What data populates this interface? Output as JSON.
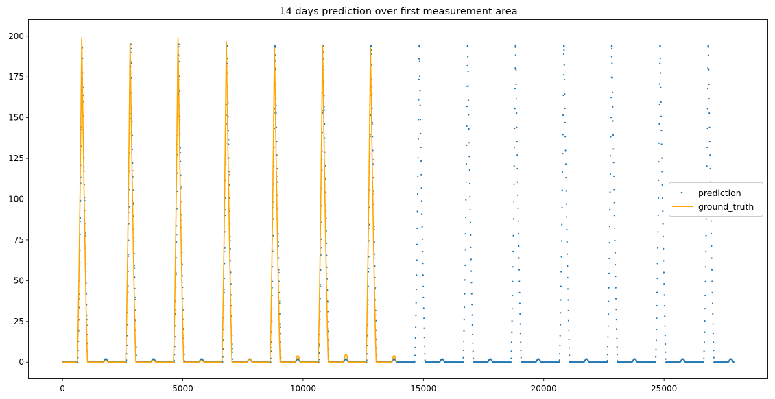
{
  "chart_data": {
    "type": "scatter",
    "title": "14 days prediction over first measurement area",
    "xlabel": "",
    "ylabel": "",
    "xlim": [
      -1400,
      29300
    ],
    "ylim": [
      -10,
      210
    ],
    "grid": false,
    "legend_position": "center-right",
    "x_ticks": [
      0,
      5000,
      10000,
      15000,
      20000,
      25000
    ],
    "y_ticks": [
      0,
      25,
      50,
      75,
      100,
      125,
      150,
      175,
      200
    ],
    "x_tick_labels": [
      "0",
      "5000",
      "10000",
      "15000",
      "20000",
      "25000"
    ],
    "y_tick_labels": [
      "0",
      "25",
      "50",
      "75",
      "100",
      "125",
      "150",
      "175",
      "200"
    ],
    "series": [
      {
        "name": "prediction",
        "kind": "scatter",
        "color": "#1f77b4",
        "x_range": [
          0,
          27900
        ],
        "period": 2000,
        "peaks": [
          {
            "x": 820,
            "y": 193
          },
          {
            "x": 2840,
            "y": 195
          },
          {
            "x": 4830,
            "y": 195
          },
          {
            "x": 6840,
            "y": 194
          },
          {
            "x": 8840,
            "y": 194
          },
          {
            "x": 10840,
            "y": 194
          },
          {
            "x": 12830,
            "y": 194
          },
          {
            "x": 14830,
            "y": 194
          },
          {
            "x": 16840,
            "y": 194
          },
          {
            "x": 18830,
            "y": 194
          },
          {
            "x": 20840,
            "y": 194
          },
          {
            "x": 22830,
            "y": 194
          },
          {
            "x": 24840,
            "y": 194
          },
          {
            "x": 26840,
            "y": 194
          }
        ],
        "minor_bumps": [
          {
            "x": 1800,
            "y": 2
          },
          {
            "x": 3780,
            "y": 2
          },
          {
            "x": 5780,
            "y": 2
          },
          {
            "x": 7780,
            "y": 2
          },
          {
            "x": 9780,
            "y": 2
          },
          {
            "x": 11780,
            "y": 2
          },
          {
            "x": 13780,
            "y": 2
          },
          {
            "x": 15780,
            "y": 2
          },
          {
            "x": 17780,
            "y": 2
          },
          {
            "x": 19780,
            "y": 2
          },
          {
            "x": 21780,
            "y": 2
          },
          {
            "x": 23780,
            "y": 2
          },
          {
            "x": 25780,
            "y": 2
          },
          {
            "x": 27780,
            "y": 2
          }
        ]
      },
      {
        "name": "ground_truth",
        "kind": "line",
        "color": "#ffa500",
        "x_range": [
          0,
          13900
        ],
        "peaks": [
          {
            "x": 800,
            "y": 199
          },
          {
            "x": 2810,
            "y": 196
          },
          {
            "x": 4800,
            "y": 199
          },
          {
            "x": 6810,
            "y": 197
          },
          {
            "x": 8810,
            "y": 193
          },
          {
            "x": 10810,
            "y": 195
          },
          {
            "x": 12800,
            "y": 193
          }
        ],
        "minor_bumps": [
          {
            "x": 1800,
            "y": 1
          },
          {
            "x": 3780,
            "y": 1
          },
          {
            "x": 5780,
            "y": 1
          },
          {
            "x": 7780,
            "y": 2
          },
          {
            "x": 9780,
            "y": 4
          },
          {
            "x": 11780,
            "y": 5
          },
          {
            "x": 13780,
            "y": 4
          }
        ]
      }
    ]
  }
}
